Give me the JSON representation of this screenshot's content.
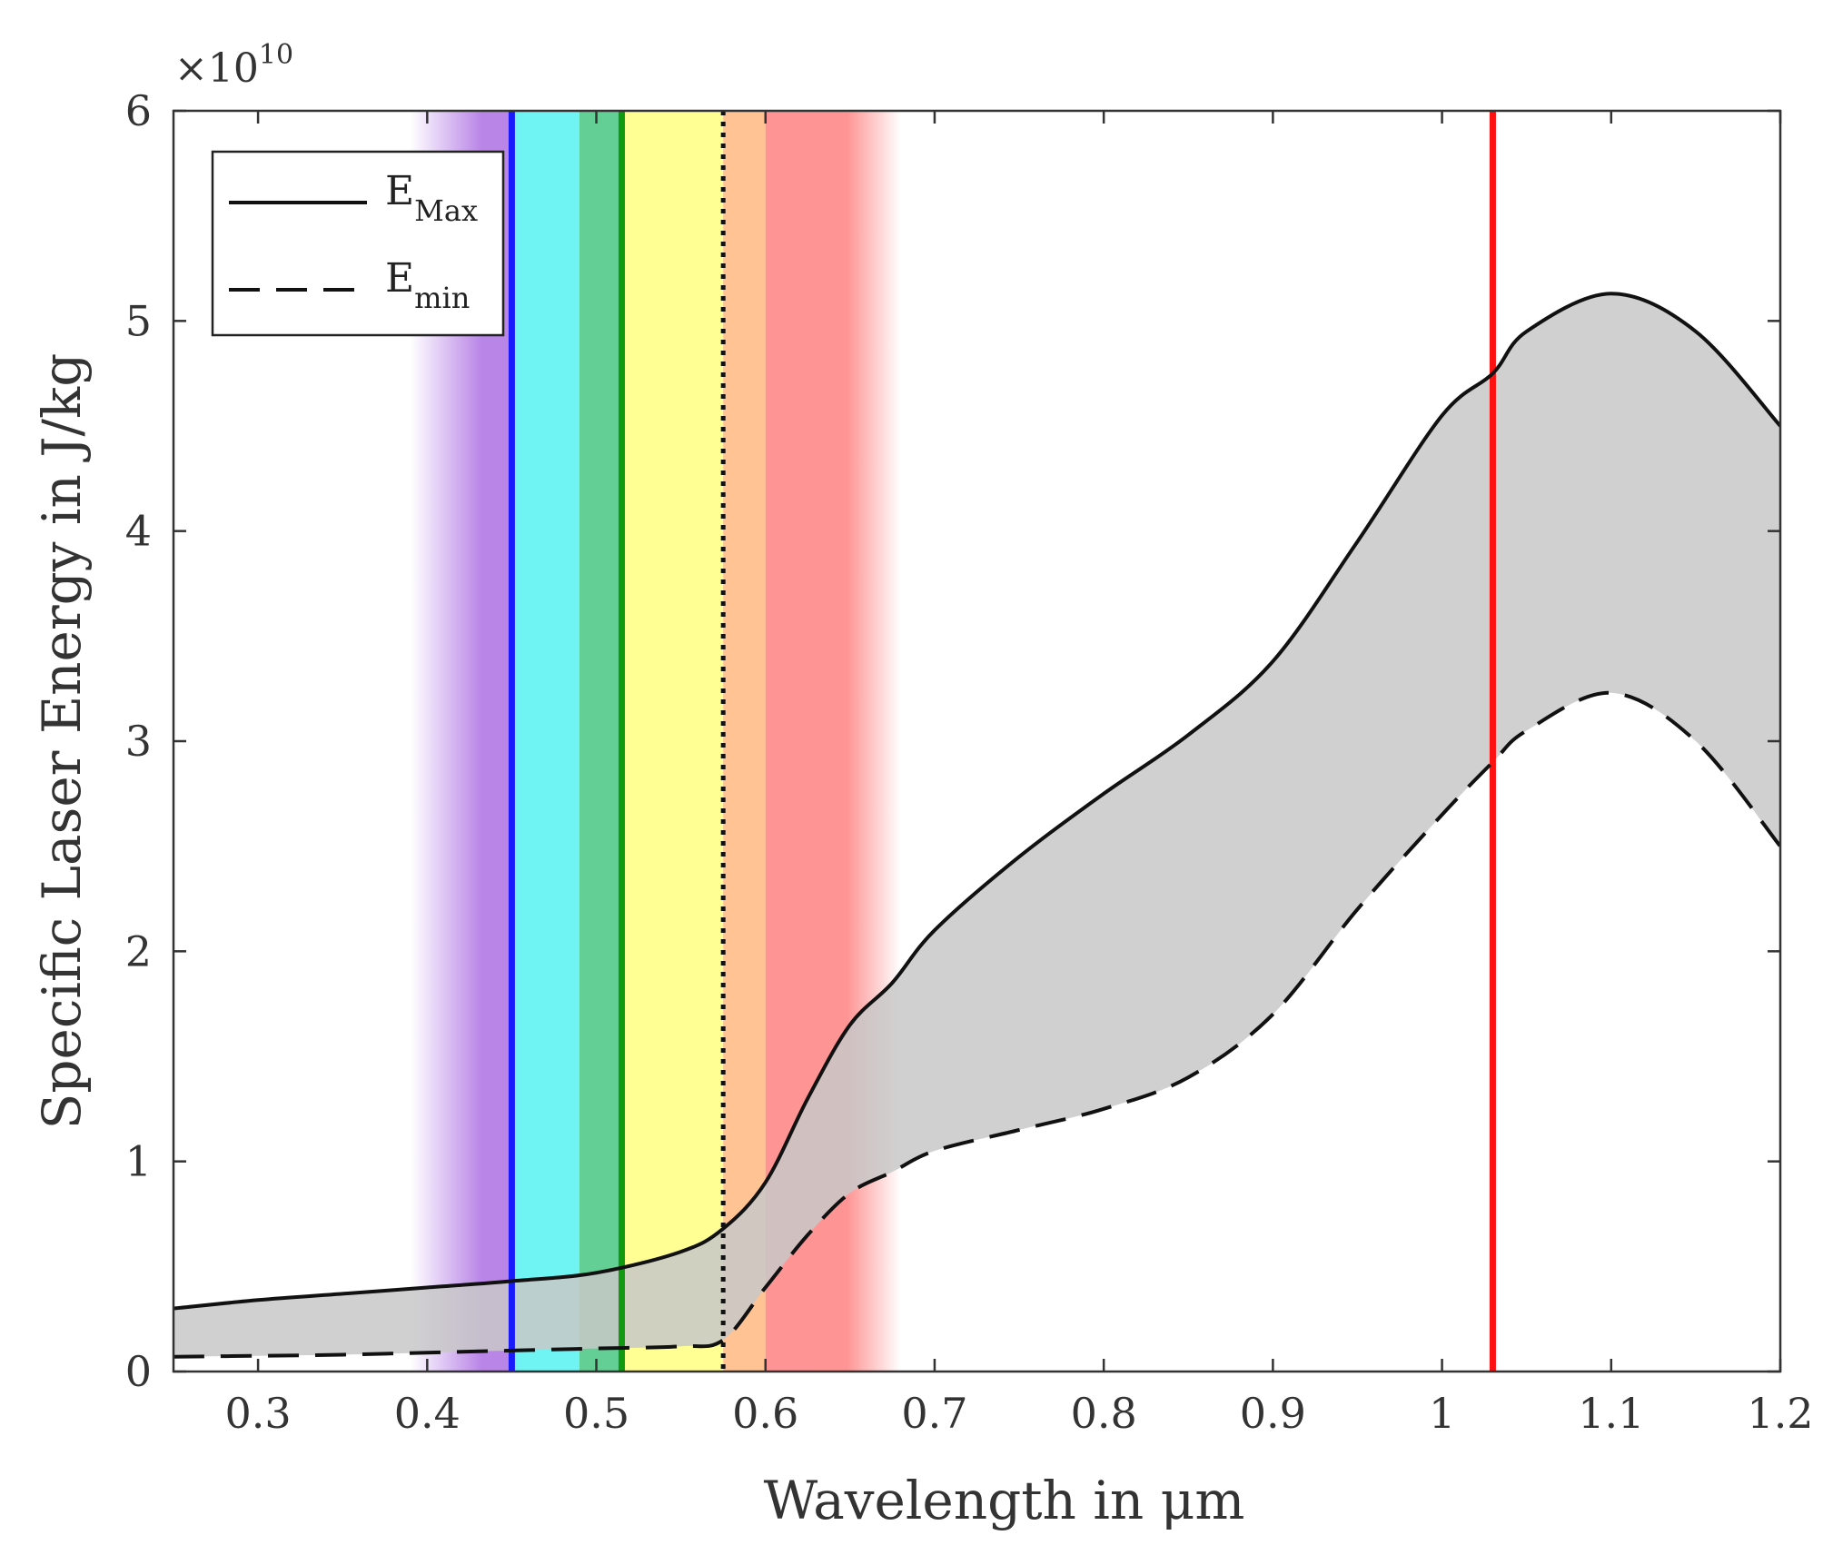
{
  "chart_data": {
    "type": "line",
    "title": "",
    "xlabel": "Wavelength in μm",
    "ylabel": "Specific Laser Energy in J/kg",
    "y_exponent_base": "×10",
    "y_exponent_power": "10",
    "xlim": [
      0.25,
      1.2
    ],
    "ylim": [
      0,
      6
    ],
    "grid": false,
    "x_ticks": [
      0.3,
      0.4,
      0.5,
      0.6,
      0.7,
      0.8,
      0.9,
      1.0,
      1.1,
      1.2
    ],
    "x_tick_labels": [
      "0.3",
      "0.4",
      "0.5",
      "0.6",
      "0.7",
      "0.8",
      "0.9",
      "1",
      "1.1",
      "1.2"
    ],
    "y_ticks": [
      0,
      1,
      2,
      3,
      4,
      5,
      6
    ],
    "y_tick_labels": [
      "0",
      "1",
      "2",
      "3",
      "4",
      "5",
      "6"
    ],
    "legend": {
      "placement": "top-left",
      "entries": [
        {
          "symbol": "E",
          "subscript": "Max",
          "style": "solid"
        },
        {
          "symbol": "E",
          "subscript": "min",
          "style": "dashed"
        }
      ]
    },
    "series": [
      {
        "name": "E_Max",
        "style": "solid",
        "color": "#111111",
        "x": [
          0.25,
          0.3,
          0.35,
          0.4,
          0.45,
          0.5,
          0.55,
          0.575,
          0.6,
          0.625,
          0.65,
          0.675,
          0.7,
          0.75,
          0.8,
          0.85,
          0.9,
          0.95,
          1.0,
          1.03,
          1.05,
          1.1,
          1.15,
          1.2
        ],
        "y": [
          0.3,
          0.34,
          0.37,
          0.4,
          0.43,
          0.47,
          0.57,
          0.68,
          0.9,
          1.3,
          1.65,
          1.85,
          2.1,
          2.45,
          2.75,
          3.03,
          3.38,
          3.95,
          4.55,
          4.75,
          4.95,
          5.13,
          4.95,
          4.5
        ]
      },
      {
        "name": "E_min",
        "style": "dashed",
        "color": "#111111",
        "x": [
          0.25,
          0.3,
          0.35,
          0.4,
          0.45,
          0.5,
          0.55,
          0.575,
          0.6,
          0.625,
          0.65,
          0.675,
          0.7,
          0.75,
          0.8,
          0.85,
          0.9,
          0.95,
          1.0,
          1.03,
          1.05,
          1.1,
          1.15,
          1.2
        ],
        "y": [
          0.07,
          0.075,
          0.08,
          0.09,
          0.1,
          0.11,
          0.12,
          0.15,
          0.4,
          0.65,
          0.85,
          0.95,
          1.05,
          1.15,
          1.25,
          1.4,
          1.7,
          2.2,
          2.65,
          2.9,
          3.05,
          3.23,
          3.0,
          2.5
        ]
      }
    ],
    "band_fill": {
      "between": [
        "E_min",
        "E_Max"
      ],
      "color": "#c8c8c8"
    },
    "spectrum_bands": [
      {
        "x0": 0.39,
        "x1": 0.45,
        "color": "#a25ddf",
        "fade_left": true,
        "fade_right": false
      },
      {
        "x0": 0.45,
        "x1": 0.49,
        "color": "#33eeee",
        "fade_left": false,
        "fade_right": false
      },
      {
        "x0": 0.49,
        "x1": 0.515,
        "color": "#22bb66",
        "fade_left": false,
        "fade_right": false
      },
      {
        "x0": 0.515,
        "x1": 0.575,
        "color": "#ffff66",
        "fade_left": false,
        "fade_right": false
      },
      {
        "x0": 0.575,
        "x1": 0.6,
        "color": "#ffaa66",
        "fade_left": false,
        "fade_right": false
      },
      {
        "x0": 0.6,
        "x1": 0.68,
        "color": "#ff6666",
        "fade_left": false,
        "fade_right": true
      }
    ],
    "vertical_lines": [
      {
        "x": 0.45,
        "color": "#1a1aff",
        "style": "solid"
      },
      {
        "x": 0.515,
        "color": "#119911",
        "style": "solid"
      },
      {
        "x": 0.575,
        "color": "#111111",
        "style": "dotted"
      },
      {
        "x": 1.03,
        "color": "#ff1111",
        "style": "solid"
      }
    ]
  }
}
